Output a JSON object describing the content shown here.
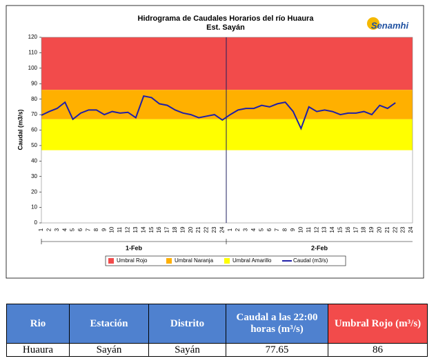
{
  "chart_data": {
    "type": "line",
    "title": "Hidrograma de Caudales Horarios del río Huaura",
    "subtitle": "Est. Sayán",
    "logo": "Senamhi",
    "y_label": "Caudal  (m3/s)",
    "categories": [
      "1",
      "2",
      "3",
      "4",
      "5",
      "6",
      "7",
      "8",
      "9",
      "10",
      "11",
      "12",
      "13",
      "14",
      "15",
      "16",
      "17",
      "18",
      "19",
      "20",
      "21",
      "22",
      "23",
      "24",
      "1",
      "2",
      "3",
      "4",
      "5",
      "6",
      "7",
      "8",
      "9",
      "10",
      "11",
      "12",
      "13",
      "14",
      "15",
      "16",
      "17",
      "18",
      "19",
      "20",
      "21",
      "22",
      "23",
      "24"
    ],
    "groups": [
      "1-Feb",
      "2-Feb"
    ],
    "thresholds": [
      {
        "name": "Umbral Rojo",
        "color": "#f24b4b",
        "value": 86
      },
      {
        "name": "Umbral Naranja",
        "color": "#ffb000",
        "value": 67
      },
      {
        "name": "Umbral Amarillo",
        "color": "#ffff00",
        "value": 47
      }
    ],
    "series": [
      {
        "name": "Caudal (m3/s)",
        "color": "#1f1fa8",
        "values": [
          69.6,
          72,
          74,
          78,
          67,
          71,
          73,
          73,
          70,
          72,
          71,
          71.5,
          68,
          82,
          81,
          77,
          76,
          73,
          71,
          70,
          68,
          69,
          70,
          66.5,
          70,
          73,
          74,
          74,
          76,
          75,
          77,
          78,
          72,
          61,
          75,
          72,
          73,
          72,
          70,
          71,
          71,
          72,
          70,
          76,
          74,
          77.65,
          null,
          null
        ]
      }
    ],
    "ylim": [
      0,
      120
    ],
    "yticks": [
      0,
      10,
      20,
      30,
      40,
      50,
      60,
      70,
      80,
      90,
      100,
      110,
      120
    ],
    "grid": false
  },
  "table": {
    "header": [
      "Rio",
      "Estación",
      "Distrito",
      "Caudal a las 22:00 horas (m³/s)",
      "Umbral Rojo (m³/s)"
    ],
    "rows": [
      [
        "Huaura",
        "Sayán",
        "Sayán",
        "77.65",
        "86"
      ]
    ]
  }
}
